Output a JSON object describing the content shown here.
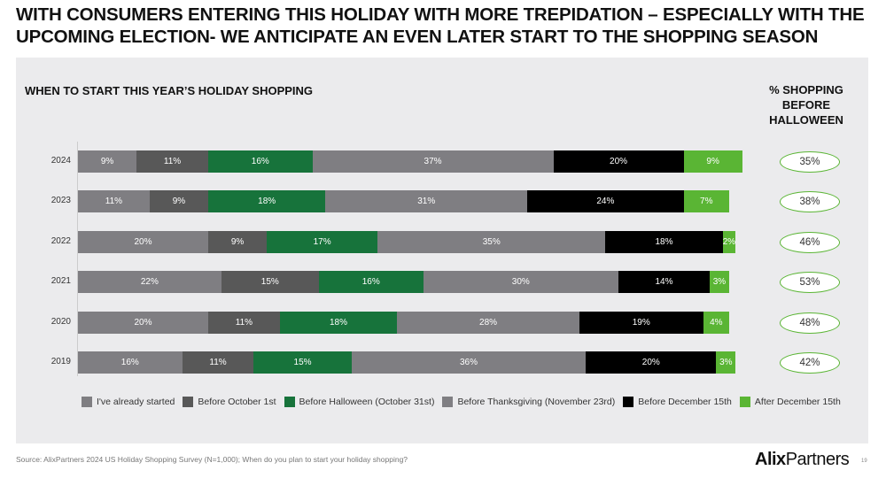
{
  "header": {
    "title_line1": "WITH CONSUMERS ENTERING THIS HOLIDAY WITH MORE TREPIDATION – ESPECIALLY WITH THE",
    "title_line2": "UPCOMING ELECTION- WE ANTICIPATE AN EVEN LATER START TO THE SHOPPING SEASON"
  },
  "chart_data": {
    "type": "bar",
    "stacked": true,
    "orientation": "horizontal",
    "title": "WHEN TO START THIS YEAR’S HOLIDAY SHOPPING",
    "categories": [
      "2024",
      "2023",
      "2022",
      "2021",
      "2020",
      "2019"
    ],
    "series": [
      {
        "name": "I've already started",
        "color": "#7f7e82",
        "values": [
          9,
          11,
          20,
          22,
          20,
          16
        ]
      },
      {
        "name": "Before October 1st",
        "color": "#585858",
        "values": [
          11,
          9,
          9,
          15,
          11,
          11
        ]
      },
      {
        "name": "Before Halloween (October 31st)",
        "color": "#17733b",
        "values": [
          16,
          18,
          17,
          16,
          18,
          15
        ]
      },
      {
        "name": "Before Thanksgiving (November 23rd)",
        "color": "#7f7e82",
        "values": [
          37,
          31,
          35,
          30,
          28,
          36
        ]
      },
      {
        "name": "Before December 15th",
        "color": "#000000",
        "values": [
          20,
          24,
          18,
          14,
          19,
          20
        ]
      },
      {
        "name": "After December 15th",
        "color": "#5ab534",
        "values": [
          9,
          7,
          2,
          3,
          4,
          3
        ]
      }
    ],
    "side_header": "% SHOPPING BEFORE HALLOWEEN",
    "side_values": [
      "35%",
      "38%",
      "46%",
      "53%",
      "48%",
      "42%"
    ],
    "legend": "bottom"
  },
  "footer": {
    "source": "Source: AlixPartners 2024 US Holiday Shopping Survey (N=1,000);  When do you plan to start your holiday shopping?",
    "logo_bold": "Alix",
    "logo_rest": "Partners",
    "page": "19"
  }
}
